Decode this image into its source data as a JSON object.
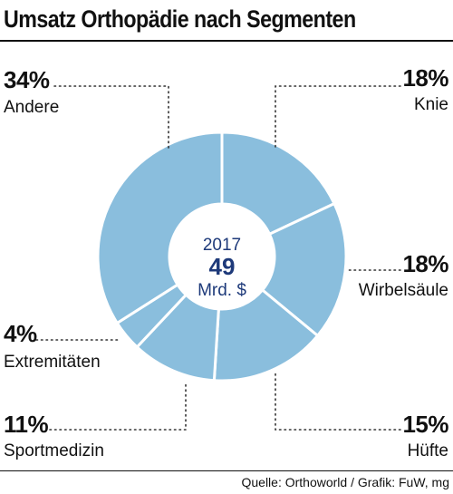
{
  "title": "Umsatz Orthopädie nach Segmenten",
  "source": "Quelle: Orthoworld / Grafik: FuW, mg",
  "colors": {
    "slice": "#8abedd",
    "separator": "#ffffff",
    "leader": "#333333",
    "center_text": "#1e3a7a"
  },
  "chart_data": {
    "type": "pie",
    "donut": true,
    "center": {
      "year": "2017",
      "total": "49",
      "unit": "Mrd. $"
    },
    "slices": [
      {
        "name": "Knie",
        "value": 18,
        "label": "18%"
      },
      {
        "name": "Wirbelsäule",
        "value": 18,
        "label": "18%"
      },
      {
        "name": "Hüfte",
        "value": 15,
        "label": "15%"
      },
      {
        "name": "Sportmedizin",
        "value": 11,
        "label": "11%"
      },
      {
        "name": "Extremitäten",
        "value": 4,
        "label": "4%"
      },
      {
        "name": "Andere",
        "value": 34,
        "label": "34%"
      }
    ]
  }
}
